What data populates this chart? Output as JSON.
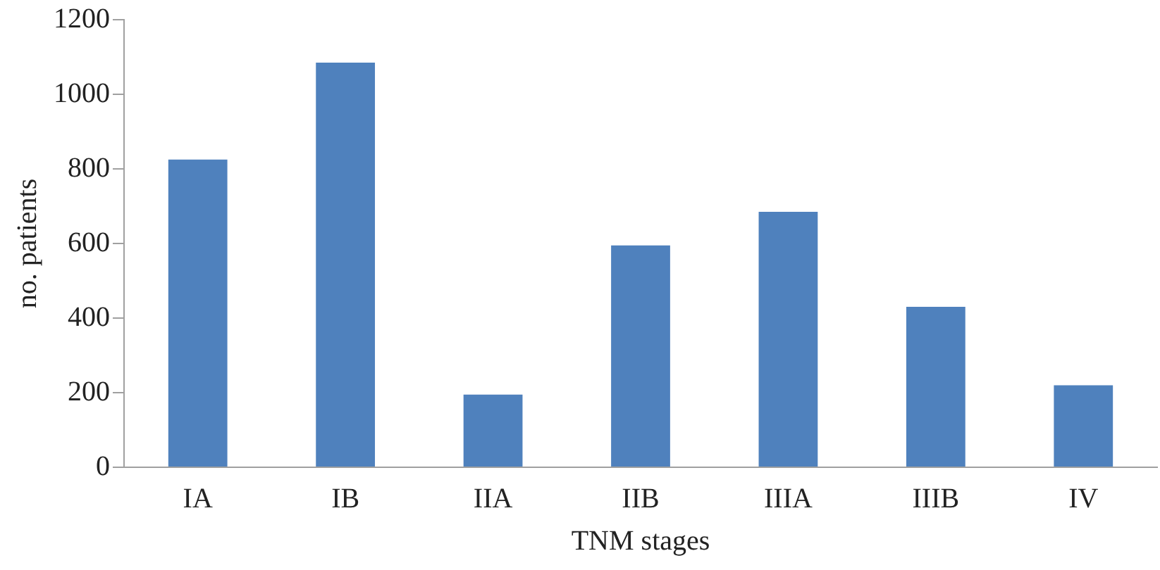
{
  "chart_data": {
    "type": "bar",
    "xlabel": "TNM stages",
    "ylabel": "no. patients",
    "categories": [
      "IA",
      "IB",
      "IIA",
      "IIB",
      "IIIA",
      "IIIB",
      "IV"
    ],
    "values": [
      825,
      1085,
      195,
      595,
      685,
      430,
      220
    ],
    "color": "#4f81bd",
    "ylim": [
      0,
      1200
    ],
    "yticks": [
      0,
      200,
      400,
      600,
      800,
      1000,
      1200
    ],
    "grid": false,
    "legend": false
  }
}
